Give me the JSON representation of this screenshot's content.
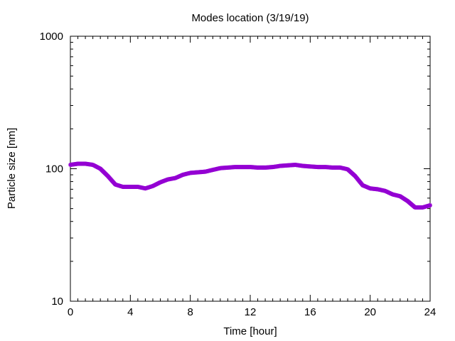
{
  "chart_data": {
    "type": "scatter",
    "title": "Modes location (3/19/19)",
    "xlabel": "Time [hour]",
    "ylabel": "Particle size [nm]",
    "xlim": [
      0,
      24
    ],
    "ylim": [
      10,
      1000
    ],
    "y_scale": "log",
    "x_ticks": [
      0,
      4,
      8,
      12,
      16,
      20,
      24
    ],
    "x_tick_labels": [
      "0",
      "4",
      "8",
      "12",
      "16",
      "20",
      "24"
    ],
    "y_ticks": [
      10,
      100,
      1000
    ],
    "y_tick_labels": [
      "10",
      "100",
      "1000"
    ],
    "grid": false,
    "legend": "none",
    "marker_color": "#9400d3",
    "series": [
      {
        "x": [
          0,
          0.5,
          1,
          1.5,
          2,
          2.5,
          3,
          3.5,
          4,
          4.5,
          5,
          5.5,
          6,
          6.5,
          7,
          7.5,
          8,
          8.5,
          9,
          9.5,
          10,
          10.5,
          11,
          11.5,
          12,
          12.5,
          13,
          13.5,
          14,
          14.5,
          15,
          15.5,
          16,
          16.5,
          17,
          17.5,
          18,
          18.5,
          19,
          19.5,
          20,
          20.5,
          21,
          21.5,
          22,
          22.5,
          23,
          23.5,
          24
        ],
        "y": [
          107,
          109,
          109,
          107,
          100,
          88,
          76,
          73,
          73,
          73,
          71,
          74,
          79,
          83,
          85,
          90,
          93,
          94,
          95,
          98,
          101,
          102,
          103,
          103,
          103,
          102,
          102,
          103,
          105,
          106,
          107,
          105,
          104,
          103,
          103,
          102,
          102,
          99,
          88,
          75,
          71,
          70,
          68,
          64,
          62,
          57,
          51,
          51,
          53
        ]
      }
    ]
  }
}
